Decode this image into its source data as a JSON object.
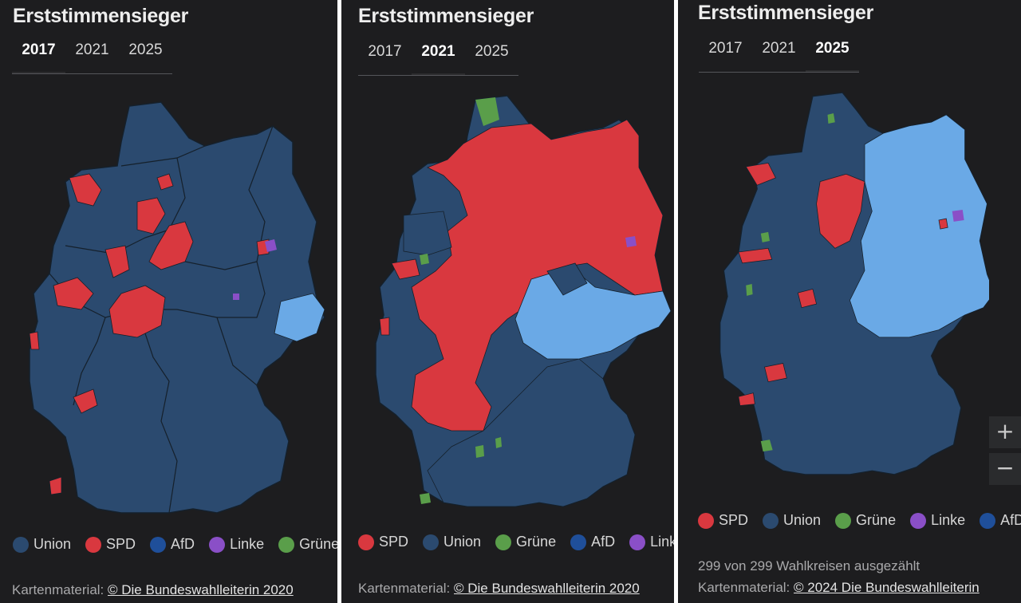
{
  "colors": {
    "union": "#2b4a6f",
    "spd": "#d9383f",
    "afd": "#1f4f9a",
    "afd_map": "#6aa9e6",
    "linke": "#8a4fc7",
    "gruene": "#5a9e4a",
    "border": "#15202b"
  },
  "panels": [
    {
      "title": "Erststimmensieger",
      "tabs": [
        "2017",
        "2021",
        "2025"
      ],
      "active_tab": "2017",
      "legend": [
        {
          "label": "Union",
          "color": "#2b4a6f"
        },
        {
          "label": "SPD",
          "color": "#d9383f"
        },
        {
          "label": "AfD",
          "color": "#1f4f9a"
        },
        {
          "label": "Linke",
          "color": "#8a4fc7"
        },
        {
          "label": "Grüne",
          "color": "#5a9e4a"
        }
      ],
      "credit_prefix": "Kartenmaterial: ",
      "credit_link": "© Die Bundeswahlleiterin 2020"
    },
    {
      "title": "Erststimmensieger",
      "tabs": [
        "2017",
        "2021",
        "2025"
      ],
      "active_tab": "2021",
      "legend": [
        {
          "label": "SPD",
          "color": "#d9383f"
        },
        {
          "label": "Union",
          "color": "#2b4a6f"
        },
        {
          "label": "Grüne",
          "color": "#5a9e4a"
        },
        {
          "label": "AfD",
          "color": "#1f4f9a"
        },
        {
          "label": "Linke",
          "color": "#8a4fc7"
        }
      ],
      "credit_prefix": "Kartenmaterial: ",
      "credit_link": "© Die Bundeswahlleiterin 2020"
    },
    {
      "title": "Erststimmensieger",
      "tabs": [
        "2017",
        "2021",
        "2025"
      ],
      "active_tab": "2025",
      "legend": [
        {
          "label": "SPD",
          "color": "#d9383f"
        },
        {
          "label": "Union",
          "color": "#2b4a6f"
        },
        {
          "label": "Grüne",
          "color": "#5a9e4a"
        },
        {
          "label": "Linke",
          "color": "#8a4fc7"
        },
        {
          "label": "AfD",
          "color": "#1f4f9a"
        }
      ],
      "status": "299 von 299 Wahlkreisen ausgezählt",
      "credit_prefix": "Kartenmaterial: ",
      "credit_link": "© 2024 Die Bundeswahlleiterin",
      "zoom_in": "+",
      "zoom_out": "−"
    }
  ]
}
